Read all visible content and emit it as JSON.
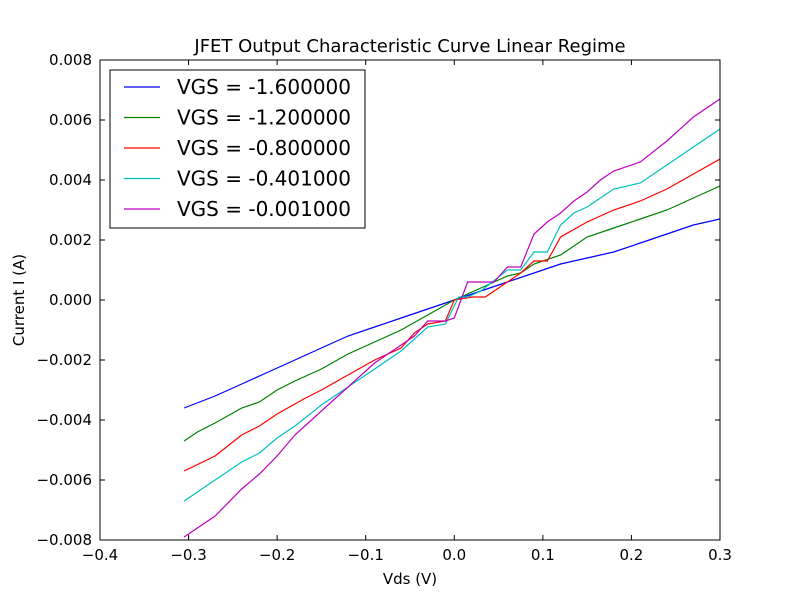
{
  "chart_data": {
    "type": "line",
    "title": "JFET Output Characteristic Curve Linear Regime",
    "xlabel": "Vds (V)",
    "ylabel": "Current I (A)",
    "xlim": [
      -0.4,
      0.3
    ],
    "ylim": [
      -0.008,
      0.008
    ],
    "xticks": [
      -0.4,
      -0.3,
      -0.2,
      -0.1,
      0.0,
      0.1,
      0.2,
      0.3
    ],
    "xtick_labels": [
      "−0.4",
      "−0.3",
      "−0.2",
      "−0.1",
      "0.0",
      "0.1",
      "0.2",
      "0.3"
    ],
    "yticks": [
      -0.008,
      -0.006,
      -0.004,
      -0.002,
      0.0,
      0.002,
      0.004,
      0.006,
      0.008
    ],
    "ytick_labels": [
      "−0.008",
      "−0.006",
      "−0.004",
      "−0.002",
      "0.000",
      "0.002",
      "0.004",
      "0.006",
      "0.008"
    ],
    "grid": false,
    "legend_position": "top-left",
    "series": [
      {
        "name": "VGS = -1.600000",
        "color": "#0000ff",
        "x": [
          -0.305,
          -0.27,
          -0.24,
          -0.21,
          -0.18,
          -0.15,
          -0.12,
          -0.09,
          -0.06,
          -0.03,
          0.0,
          0.03,
          0.06,
          0.09,
          0.12,
          0.15,
          0.18,
          0.21,
          0.24,
          0.27,
          0.3
        ],
        "y": [
          -0.0036,
          -0.0032,
          -0.0028,
          -0.0024,
          -0.002,
          -0.0016,
          -0.0012,
          -0.0009,
          -0.0006,
          -0.0003,
          0.0,
          0.0003,
          0.0006,
          0.0009,
          0.0012,
          0.0014,
          0.0016,
          0.0019,
          0.0022,
          0.0025,
          0.0027
        ]
      },
      {
        "name": "VGS = -1.200000",
        "color": "#008000",
        "x": [
          -0.305,
          -0.29,
          -0.27,
          -0.24,
          -0.22,
          -0.2,
          -0.18,
          -0.15,
          -0.12,
          -0.09,
          -0.06,
          -0.03,
          0.0,
          0.03,
          0.06,
          0.075,
          0.09,
          0.12,
          0.15,
          0.18,
          0.21,
          0.24,
          0.27,
          0.3
        ],
        "y": [
          -0.0047,
          -0.0044,
          -0.0041,
          -0.0036,
          -0.0034,
          -0.003,
          -0.0027,
          -0.0023,
          -0.0018,
          -0.0014,
          -0.001,
          -0.0005,
          0.0,
          0.0004,
          0.0008,
          0.0009,
          0.0012,
          0.0015,
          0.0021,
          0.0024,
          0.0027,
          0.003,
          0.0034,
          0.0038
        ]
      },
      {
        "name": "VGS = -0.800000",
        "color": "#ff0000",
        "x": [
          -0.305,
          -0.27,
          -0.24,
          -0.22,
          -0.2,
          -0.17,
          -0.15,
          -0.12,
          -0.09,
          -0.06,
          -0.045,
          -0.03,
          -0.01,
          0.0,
          0.02,
          0.035,
          0.05,
          0.075,
          0.09,
          0.105,
          0.12,
          0.15,
          0.18,
          0.21,
          0.24,
          0.27,
          0.3
        ],
        "y": [
          -0.0057,
          -0.0052,
          -0.0045,
          -0.0042,
          -0.0038,
          -0.0033,
          -0.003,
          -0.0025,
          -0.002,
          -0.0016,
          -0.0011,
          -0.0008,
          -0.0007,
          0.0,
          0.0001,
          0.0001,
          0.0004,
          0.0009,
          0.0013,
          0.0013,
          0.0021,
          0.0026,
          0.003,
          0.0033,
          0.0037,
          0.0042,
          0.0047
        ]
      },
      {
        "name": "VGS = -0.401000",
        "color": "#00bfbf",
        "x": [
          -0.305,
          -0.29,
          -0.27,
          -0.24,
          -0.22,
          -0.2,
          -0.18,
          -0.15,
          -0.12,
          -0.09,
          -0.06,
          -0.045,
          -0.03,
          -0.01,
          0.005,
          0.015,
          0.03,
          0.06,
          0.075,
          0.09,
          0.105,
          0.12,
          0.135,
          0.15,
          0.18,
          0.21,
          0.24,
          0.27,
          0.3
        ],
        "y": [
          -0.0067,
          -0.0064,
          -0.006,
          -0.0054,
          -0.0051,
          -0.0046,
          -0.0042,
          -0.0035,
          -0.0029,
          -0.0023,
          -0.0017,
          -0.0013,
          -0.0009,
          -0.0008,
          0.0001,
          0.0001,
          0.0003,
          0.001,
          0.001,
          0.0016,
          0.0016,
          0.0025,
          0.0029,
          0.0031,
          0.0037,
          0.0039,
          0.0045,
          0.0051,
          0.0057
        ]
      },
      {
        "name": "VGS = -0.001000",
        "color": "#bf00bf",
        "x": [
          -0.305,
          -0.29,
          -0.27,
          -0.24,
          -0.22,
          -0.2,
          -0.18,
          -0.15,
          -0.12,
          -0.09,
          -0.07,
          -0.045,
          -0.03,
          -0.01,
          0.0,
          0.015,
          0.03,
          0.045,
          0.06,
          0.075,
          0.09,
          0.105,
          0.12,
          0.135,
          0.15,
          0.165,
          0.18,
          0.21,
          0.24,
          0.27,
          0.3
        ],
        "y": [
          -0.0079,
          -0.0076,
          -0.0072,
          -0.0063,
          -0.0058,
          -0.0052,
          -0.0045,
          -0.0037,
          -0.0029,
          -0.0021,
          -0.0017,
          -0.0012,
          -0.0007,
          -0.0007,
          -0.0006,
          0.0006,
          0.0006,
          0.0006,
          0.0011,
          0.0011,
          0.0022,
          0.0026,
          0.0029,
          0.0033,
          0.0036,
          0.004,
          0.0043,
          0.0046,
          0.0053,
          0.0061,
          0.0067
        ]
      }
    ]
  }
}
